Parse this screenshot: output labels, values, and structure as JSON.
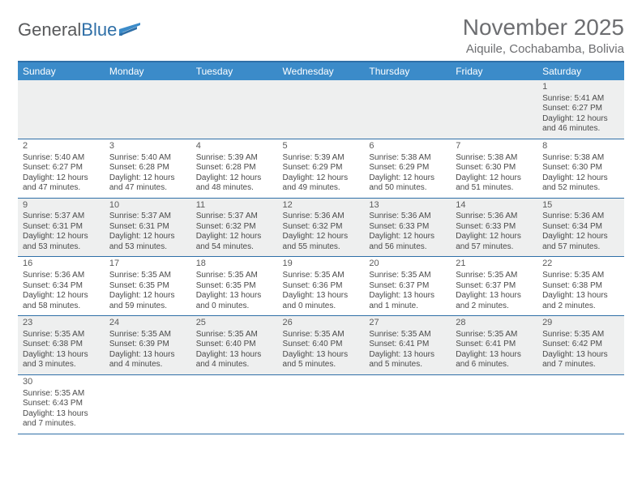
{
  "brand": {
    "name_a": "General",
    "name_b": "Blue"
  },
  "title": "November 2025",
  "location": "Aiquile, Cochabamba, Bolivia",
  "colors": {
    "header_bg": "#3b8bc9",
    "rule": "#2f6fa7",
    "alt_row": "#eeefef",
    "text": "#4a4a4a",
    "title_text": "#6d6e71"
  },
  "day_headers": [
    "Sunday",
    "Monday",
    "Tuesday",
    "Wednesday",
    "Thursday",
    "Friday",
    "Saturday"
  ],
  "weeks": [
    [
      null,
      null,
      null,
      null,
      null,
      null,
      {
        "n": "1",
        "sr": "5:41 AM",
        "ss": "6:27 PM",
        "dl": "12 hours and 46 minutes."
      }
    ],
    [
      {
        "n": "2",
        "sr": "5:40 AM",
        "ss": "6:27 PM",
        "dl": "12 hours and 47 minutes."
      },
      {
        "n": "3",
        "sr": "5:40 AM",
        "ss": "6:28 PM",
        "dl": "12 hours and 47 minutes."
      },
      {
        "n": "4",
        "sr": "5:39 AM",
        "ss": "6:28 PM",
        "dl": "12 hours and 48 minutes."
      },
      {
        "n": "5",
        "sr": "5:39 AM",
        "ss": "6:29 PM",
        "dl": "12 hours and 49 minutes."
      },
      {
        "n": "6",
        "sr": "5:38 AM",
        "ss": "6:29 PM",
        "dl": "12 hours and 50 minutes."
      },
      {
        "n": "7",
        "sr": "5:38 AM",
        "ss": "6:30 PM",
        "dl": "12 hours and 51 minutes."
      },
      {
        "n": "8",
        "sr": "5:38 AM",
        "ss": "6:30 PM",
        "dl": "12 hours and 52 minutes."
      }
    ],
    [
      {
        "n": "9",
        "sr": "5:37 AM",
        "ss": "6:31 PM",
        "dl": "12 hours and 53 minutes."
      },
      {
        "n": "10",
        "sr": "5:37 AM",
        "ss": "6:31 PM",
        "dl": "12 hours and 53 minutes."
      },
      {
        "n": "11",
        "sr": "5:37 AM",
        "ss": "6:32 PM",
        "dl": "12 hours and 54 minutes."
      },
      {
        "n": "12",
        "sr": "5:36 AM",
        "ss": "6:32 PM",
        "dl": "12 hours and 55 minutes."
      },
      {
        "n": "13",
        "sr": "5:36 AM",
        "ss": "6:33 PM",
        "dl": "12 hours and 56 minutes."
      },
      {
        "n": "14",
        "sr": "5:36 AM",
        "ss": "6:33 PM",
        "dl": "12 hours and 57 minutes."
      },
      {
        "n": "15",
        "sr": "5:36 AM",
        "ss": "6:34 PM",
        "dl": "12 hours and 57 minutes."
      }
    ],
    [
      {
        "n": "16",
        "sr": "5:36 AM",
        "ss": "6:34 PM",
        "dl": "12 hours and 58 minutes."
      },
      {
        "n": "17",
        "sr": "5:35 AM",
        "ss": "6:35 PM",
        "dl": "12 hours and 59 minutes."
      },
      {
        "n": "18",
        "sr": "5:35 AM",
        "ss": "6:35 PM",
        "dl": "13 hours and 0 minutes."
      },
      {
        "n": "19",
        "sr": "5:35 AM",
        "ss": "6:36 PM",
        "dl": "13 hours and 0 minutes."
      },
      {
        "n": "20",
        "sr": "5:35 AM",
        "ss": "6:37 PM",
        "dl": "13 hours and 1 minute."
      },
      {
        "n": "21",
        "sr": "5:35 AM",
        "ss": "6:37 PM",
        "dl": "13 hours and 2 minutes."
      },
      {
        "n": "22",
        "sr": "5:35 AM",
        "ss": "6:38 PM",
        "dl": "13 hours and 2 minutes."
      }
    ],
    [
      {
        "n": "23",
        "sr": "5:35 AM",
        "ss": "6:38 PM",
        "dl": "13 hours and 3 minutes."
      },
      {
        "n": "24",
        "sr": "5:35 AM",
        "ss": "6:39 PM",
        "dl": "13 hours and 4 minutes."
      },
      {
        "n": "25",
        "sr": "5:35 AM",
        "ss": "6:40 PM",
        "dl": "13 hours and 4 minutes."
      },
      {
        "n": "26",
        "sr": "5:35 AM",
        "ss": "6:40 PM",
        "dl": "13 hours and 5 minutes."
      },
      {
        "n": "27",
        "sr": "5:35 AM",
        "ss": "6:41 PM",
        "dl": "13 hours and 5 minutes."
      },
      {
        "n": "28",
        "sr": "5:35 AM",
        "ss": "6:41 PM",
        "dl": "13 hours and 6 minutes."
      },
      {
        "n": "29",
        "sr": "5:35 AM",
        "ss": "6:42 PM",
        "dl": "13 hours and 7 minutes."
      }
    ],
    [
      {
        "n": "30",
        "sr": "5:35 AM",
        "ss": "6:43 PM",
        "dl": "13 hours and 7 minutes."
      },
      null,
      null,
      null,
      null,
      null,
      null
    ]
  ],
  "labels": {
    "sunrise": "Sunrise:",
    "sunset": "Sunset:",
    "daylight": "Daylight:"
  }
}
